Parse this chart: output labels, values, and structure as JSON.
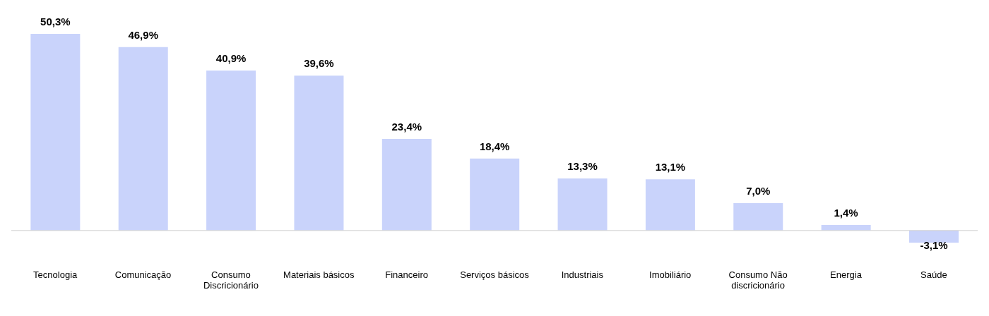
{
  "chart_data": {
    "type": "bar",
    "categories": [
      "Tecnologia",
      "Comunicação",
      "Consumo Discricionário",
      "Materiais básicos",
      "Financeiro",
      "Serviços básicos",
      "Industriais",
      "Imobiliário",
      "Consumo Não discricionário",
      "Energia",
      "Saúde"
    ],
    "values": [
      50.3,
      46.9,
      40.9,
      39.6,
      23.4,
      18.4,
      13.3,
      13.1,
      7.0,
      1.4,
      -3.1
    ],
    "value_labels": [
      "50,3%",
      "46,9%",
      "40,9%",
      "39,6%",
      "23,4%",
      "18,4%",
      "13,3%",
      "13,1%",
      "7,0%",
      "1,4%",
      "-3,1%"
    ],
    "color": "#c9d3fb",
    "grid": false,
    "legend": false
  }
}
